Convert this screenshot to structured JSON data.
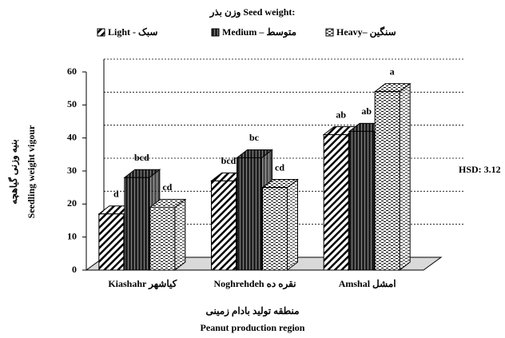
{
  "chart_data": {
    "type": "bar3d",
    "title": "وزن بذر Seed weight:",
    "categories": [
      "Kiashahr کیاشهر",
      "Noghrehdeh نقره ده",
      "Amshal امشل"
    ],
    "series": [
      {
        "name": "Light - سبک",
        "values": [
          17,
          27,
          41
        ],
        "labels": [
          "d",
          "bcd",
          "ab"
        ]
      },
      {
        "name": "Medium – متوسط",
        "values": [
          28,
          34,
          42
        ],
        "labels": [
          "bcd",
          "bc",
          "ab"
        ]
      },
      {
        "name": "Heavy– سنگین",
        "values": [
          19,
          25,
          54
        ],
        "labels": [
          "cd",
          "cd",
          "a"
        ]
      }
    ],
    "ylabel": [
      "بنیه وزنی گیاهچه",
      "Seedling weight vigour"
    ],
    "xlabel": [
      "منطقه تولید بادام زمینی",
      "Peanut production region"
    ],
    "annotation": "HSD: 3.12",
    "ylim": [
      0,
      60
    ],
    "yticks": [
      0,
      10,
      20,
      30,
      40,
      50,
      60
    ],
    "grid": true
  }
}
